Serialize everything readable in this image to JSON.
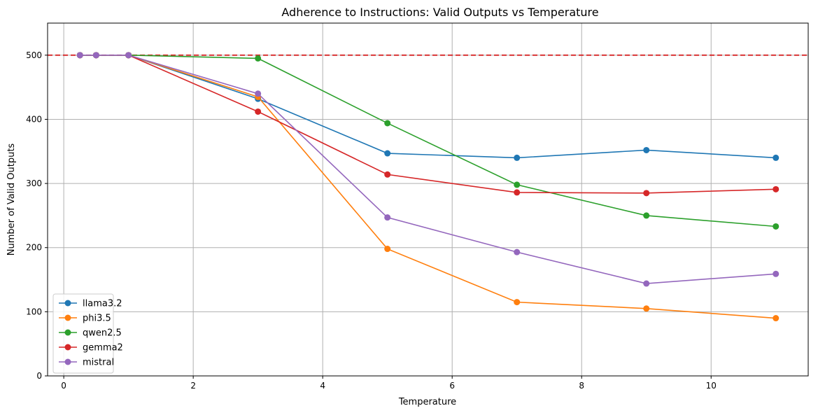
{
  "chart_data": {
    "type": "line",
    "title": "Adherence to Instructions: Valid Outputs vs Temperature",
    "xlabel": "Temperature",
    "ylabel": "Number of Valid Outputs",
    "xlim": [
      -0.25,
      11.5
    ],
    "ylim": [
      0,
      550
    ],
    "xticks": [
      0,
      2,
      4,
      6,
      8,
      10
    ],
    "yticks": [
      0,
      100,
      200,
      300,
      400,
      500
    ],
    "grid": true,
    "legend_position": "lower-left",
    "reference_line": {
      "y": 500,
      "color": "#d62728",
      "style": "dashed"
    },
    "x": [
      0.25,
      0.5,
      1,
      3,
      5,
      7,
      9,
      11
    ],
    "series": [
      {
        "name": "llama3.2",
        "color": "#1f77b4",
        "values": [
          500,
          500,
          500,
          432,
          347,
          340,
          352,
          340
        ]
      },
      {
        "name": "phi3.5",
        "color": "#ff7f0e",
        "values": [
          500,
          500,
          500,
          435,
          198,
          115,
          105,
          90
        ]
      },
      {
        "name": "qwen2.5",
        "color": "#2ca02c",
        "values": [
          500,
          500,
          500,
          495,
          394,
          298,
          250,
          233
        ]
      },
      {
        "name": "gemma2",
        "color": "#d62728",
        "values": [
          500,
          500,
          500,
          412,
          314,
          286,
          285,
          291
        ]
      },
      {
        "name": "mistral",
        "color": "#9467bd",
        "values": [
          500,
          500,
          500,
          440,
          247,
          193,
          144,
          159
        ]
      }
    ]
  }
}
